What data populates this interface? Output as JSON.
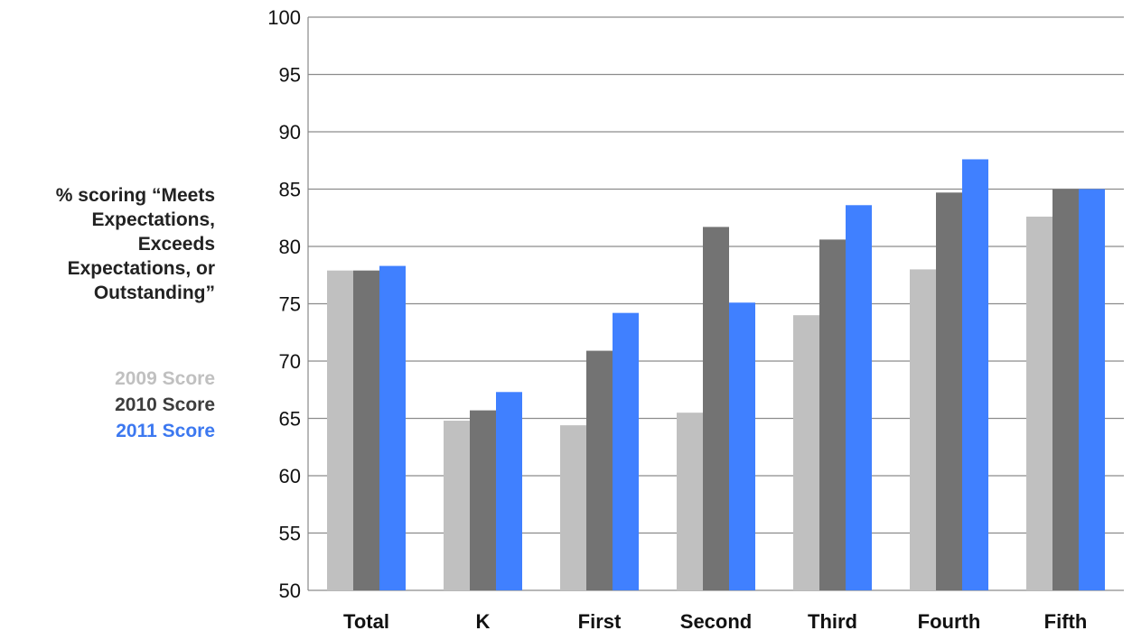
{
  "chart_data": {
    "type": "bar",
    "ylabel": "% scoring “Meets Expectations, Exceeds Expectations, or Outstanding”",
    "ylim": [
      50,
      100
    ],
    "yticks": [
      50,
      55,
      60,
      65,
      70,
      75,
      80,
      85,
      90,
      95,
      100
    ],
    "grid": true,
    "legend_position": "left",
    "categories": [
      "Total",
      "K",
      "First",
      "Second",
      "Third",
      "Fourth",
      "Fifth"
    ],
    "series": [
      {
        "name": "2009 Score",
        "color": "#c0c0c0",
        "values": [
          77.9,
          64.8,
          64.4,
          65.5,
          74.0,
          78.0,
          82.6
        ]
      },
      {
        "name": "2010 Score",
        "color": "#737373",
        "values": [
          77.9,
          65.7,
          70.9,
          81.7,
          80.6,
          84.7,
          85.0
        ]
      },
      {
        "name": "2011 Score",
        "color": "#4080ff",
        "values": [
          78.3,
          67.3,
          74.2,
          75.1,
          83.6,
          87.6,
          85.0
        ]
      }
    ]
  }
}
